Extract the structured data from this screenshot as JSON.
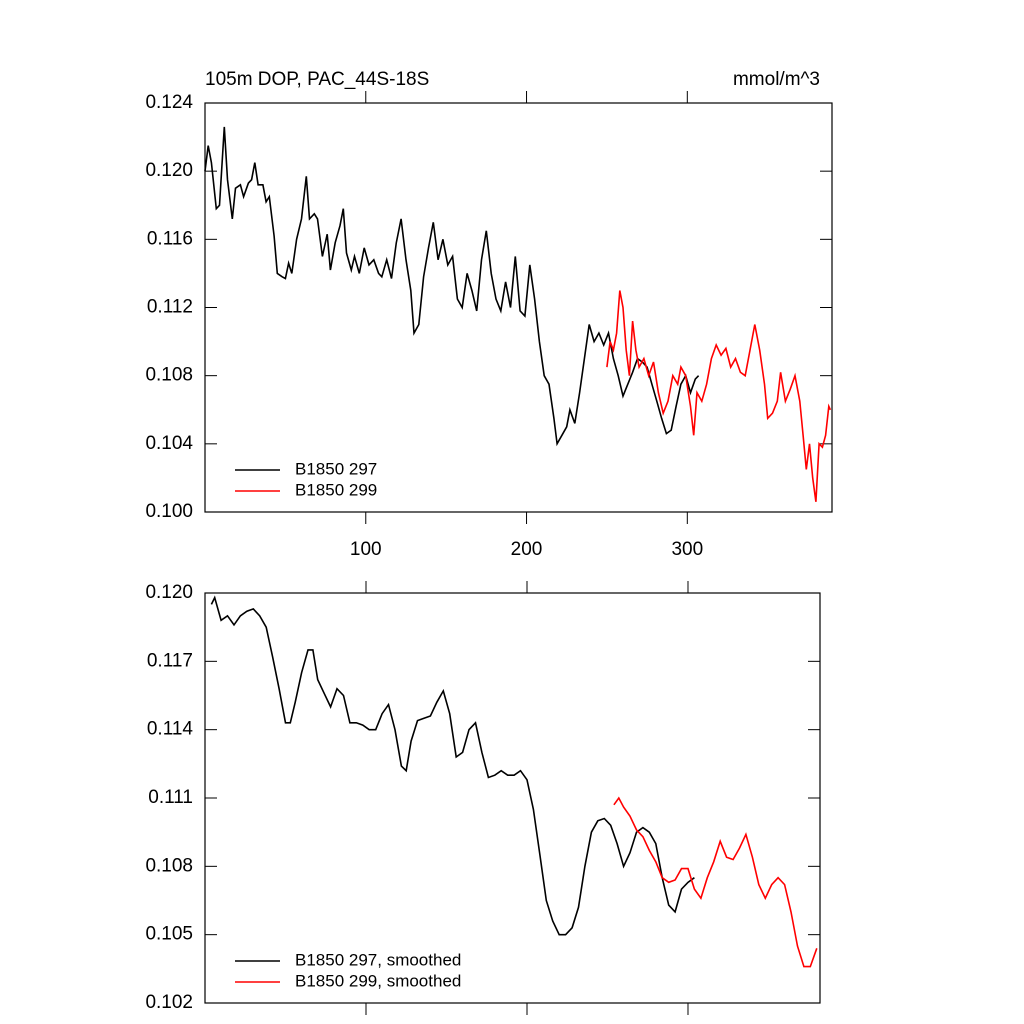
{
  "chart_data": [
    {
      "type": "line",
      "title": "105m DOP, PAC_44S-18S",
      "units": "mmol/m^3",
      "xlim": [
        0,
        390
      ],
      "ylim": [
        0.1,
        0.124
      ],
      "xticks": [
        100,
        200,
        300
      ],
      "show_xtick_labels": true,
      "yticks": [
        {
          "value": 0.1,
          "label": "0.100"
        },
        0.104,
        0.108,
        0.112,
        0.116,
        {
          "value": 0.12,
          "label": "0.120"
        },
        0.124
      ],
      "legend": "lower left",
      "series": [
        {
          "name": "B1850 297",
          "color": "#000000",
          "x": [
            0,
            2,
            4,
            7,
            9,
            12,
            14,
            17,
            19,
            22,
            24,
            27,
            29,
            31,
            33,
            36,
            38,
            40,
            43,
            45,
            48,
            50,
            52,
            54,
            57,
            60,
            63,
            65,
            68,
            70,
            73,
            76,
            78,
            81,
            84,
            86,
            88,
            91,
            93,
            96,
            99,
            102,
            105,
            108,
            110,
            113,
            116,
            119,
            122,
            125,
            128,
            130,
            133,
            136,
            139,
            142,
            145,
            148,
            151,
            154,
            157,
            160,
            163,
            166,
            169,
            172,
            175,
            178,
            181,
            184,
            187,
            190,
            193,
            196,
            199,
            202,
            205,
            208,
            211,
            214,
            217,
            219,
            222,
            225,
            227,
            230,
            233,
            236,
            239,
            242,
            245,
            248,
            251,
            254,
            257,
            260,
            263,
            266,
            269,
            272,
            275,
            278,
            281,
            284,
            287,
            290,
            293,
            296,
            299,
            302,
            305,
            307
          ],
          "values": [
            0.12,
            0.1215,
            0.1205,
            0.1178,
            0.118,
            0.1226,
            0.1195,
            0.1172,
            0.119,
            0.1192,
            0.1185,
            0.1193,
            0.1195,
            0.1205,
            0.1192,
            0.1192,
            0.1182,
            0.1185,
            0.1162,
            0.114,
            0.1138,
            0.1137,
            0.1146,
            0.114,
            0.116,
            0.1172,
            0.1197,
            0.1172,
            0.1175,
            0.1172,
            0.115,
            0.1163,
            0.1142,
            0.1158,
            0.1168,
            0.1178,
            0.1152,
            0.1142,
            0.115,
            0.114,
            0.1155,
            0.1145,
            0.1148,
            0.114,
            0.1138,
            0.1148,
            0.1137,
            0.1158,
            0.1172,
            0.1148,
            0.113,
            0.1105,
            0.111,
            0.1138,
            0.1155,
            0.117,
            0.1148,
            0.116,
            0.1145,
            0.115,
            0.1125,
            0.112,
            0.114,
            0.113,
            0.1118,
            0.1148,
            0.1165,
            0.114,
            0.1125,
            0.1118,
            0.1135,
            0.112,
            0.115,
            0.1118,
            0.1115,
            0.1145,
            0.1125,
            0.11,
            0.108,
            0.1075,
            0.1055,
            0.104,
            0.1045,
            0.105,
            0.106,
            0.1052,
            0.107,
            0.109,
            0.111,
            0.11,
            0.1105,
            0.1098,
            0.1105,
            0.109,
            0.108,
            0.1068,
            0.1075,
            0.1082,
            0.109,
            0.1088,
            0.1085,
            0.1075,
            0.1065,
            0.1055,
            0.1046,
            0.1048,
            0.1062,
            0.1075,
            0.108,
            0.107,
            0.1078,
            0.108
          ]
        },
        {
          "name": "B1850 299",
          "color": "#ff0000",
          "x": [
            250,
            252,
            254,
            256,
            258,
            260,
            262,
            264,
            266,
            268,
            270,
            273,
            276,
            279,
            282,
            285,
            288,
            291,
            294,
            296,
            299,
            302,
            304,
            306,
            309,
            312,
            315,
            318,
            321,
            324,
            327,
            330,
            333,
            336,
            339,
            342,
            345,
            348,
            350,
            353,
            356,
            358,
            361,
            364,
            367,
            370,
            372,
            374,
            376,
            378,
            380,
            382,
            384,
            386,
            388,
            389
          ],
          "values": [
            0.1085,
            0.11,
            0.1095,
            0.1105,
            0.113,
            0.112,
            0.1095,
            0.108,
            0.1112,
            0.1095,
            0.1085,
            0.109,
            0.108,
            0.1088,
            0.107,
            0.1058,
            0.1065,
            0.108,
            0.1075,
            0.1085,
            0.108,
            0.1062,
            0.1045,
            0.107,
            0.1065,
            0.1075,
            0.109,
            0.1098,
            0.1092,
            0.1096,
            0.1085,
            0.109,
            0.1082,
            0.108,
            0.1095,
            0.111,
            0.1095,
            0.1075,
            0.1055,
            0.1058,
            0.1065,
            0.1082,
            0.1065,
            0.1072,
            0.108,
            0.1065,
            0.1045,
            0.1025,
            0.104,
            0.102,
            0.1006,
            0.104,
            0.1038,
            0.1045,
            0.1062,
            0.106
          ]
        }
      ]
    },
    {
      "type": "line",
      "xlim": [
        0,
        382
      ],
      "ylim": [
        0.102,
        0.12
      ],
      "xticks": [
        100,
        200,
        300
      ],
      "show_xtick_labels": false,
      "yticks": [
        0.102,
        0.105,
        0.108,
        0.111,
        0.114,
        0.117,
        {
          "value": 0.12,
          "label": "0.120"
        }
      ],
      "legend": "lower left",
      "series": [
        {
          "name": "B1850 297, smoothed",
          "color": "#000000",
          "x": [
            4,
            6,
            10,
            14,
            18,
            22,
            26,
            30,
            34,
            38,
            42,
            46,
            50,
            53,
            56,
            60,
            64,
            67,
            70,
            74,
            78,
            82,
            86,
            90,
            94,
            98,
            102,
            106,
            110,
            114,
            118,
            122,
            125,
            128,
            132,
            136,
            140,
            144,
            148,
            152,
            156,
            160,
            164,
            168,
            172,
            176,
            180,
            184,
            188,
            192,
            196,
            200,
            204,
            208,
            212,
            216,
            220,
            224,
            228,
            232,
            236,
            240,
            244,
            248,
            252,
            256,
            260,
            264,
            268,
            272,
            276,
            280,
            284,
            288,
            292,
            296,
            300,
            304
          ],
          "values": [
            0.1195,
            0.1198,
            0.1188,
            0.119,
            0.1186,
            0.119,
            0.1192,
            0.1193,
            0.119,
            0.1185,
            0.1172,
            0.1158,
            0.1143,
            0.1143,
            0.1152,
            0.1165,
            0.1175,
            0.1175,
            0.1162,
            0.1156,
            0.115,
            0.1158,
            0.1155,
            0.1143,
            0.1143,
            0.1142,
            0.114,
            0.114,
            0.1147,
            0.1151,
            0.114,
            0.1124,
            0.1122,
            0.1135,
            0.1144,
            0.1145,
            0.1146,
            0.1152,
            0.1157,
            0.1147,
            0.1128,
            0.113,
            0.114,
            0.1143,
            0.113,
            0.1119,
            0.112,
            0.1122,
            0.112,
            0.112,
            0.1122,
            0.1118,
            0.1105,
            0.1085,
            0.1065,
            0.1056,
            0.105,
            0.105,
            0.1053,
            0.1062,
            0.108,
            0.1095,
            0.11,
            0.1101,
            0.1098,
            0.109,
            0.108,
            0.1086,
            0.1095,
            0.1097,
            0.1095,
            0.109,
            0.1075,
            0.1063,
            0.106,
            0.107,
            0.1073,
            0.1075
          ]
        },
        {
          "name": "B1850 299, smoothed",
          "color": "#ff0000",
          "x": [
            254,
            257,
            260,
            264,
            268,
            272,
            276,
            280,
            284,
            288,
            292,
            296,
            300,
            304,
            308,
            312,
            316,
            320,
            324,
            328,
            332,
            336,
            340,
            344,
            348,
            352,
            356,
            360,
            364,
            368,
            372,
            376,
            380
          ],
          "values": [
            0.1107,
            0.111,
            0.1106,
            0.1102,
            0.1096,
            0.1093,
            0.1087,
            0.1082,
            0.1075,
            0.1073,
            0.1074,
            0.1079,
            0.1079,
            0.107,
            0.1066,
            0.1075,
            0.1082,
            0.1091,
            0.1084,
            0.1083,
            0.1088,
            0.1094,
            0.1084,
            0.1072,
            0.1066,
            0.1072,
            0.1075,
            0.1072,
            0.106,
            0.1045,
            0.1036,
            0.1036,
            0.1044
          ]
        }
      ]
    }
  ]
}
